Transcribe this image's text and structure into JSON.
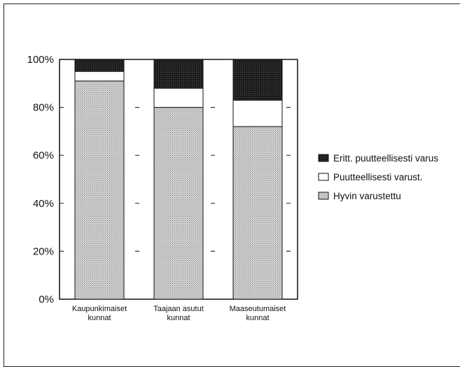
{
  "chart_data": {
    "type": "bar",
    "stacked": true,
    "percent": true,
    "categories": [
      [
        "Kaupunkimaiset",
        "kunnat"
      ],
      [
        "Taajaan asutut",
        "kunnat"
      ],
      [
        "Maaseutumaiset",
        "kunnat"
      ]
    ],
    "series": [
      {
        "name": "Hyvin varustettu",
        "values": [
          91,
          80,
          72
        ],
        "color": "#c4c4c4",
        "pattern": "stipple-light"
      },
      {
        "name": "Puutteellisesti varust.",
        "values": [
          4,
          8,
          11
        ],
        "color": "#ffffff",
        "pattern": "none"
      },
      {
        "name": "Eritt. puutteellisesti varus",
        "values": [
          5,
          12,
          17
        ],
        "color": "#1e1e1e",
        "pattern": "stipple-dark"
      }
    ],
    "yticks": [
      "0%",
      "20%",
      "40%",
      "60%",
      "80%",
      "100%"
    ],
    "ylim": [
      0,
      100
    ],
    "grid": "dashed",
    "legend_position": "right",
    "legend_order": [
      2,
      1,
      0
    ]
  }
}
